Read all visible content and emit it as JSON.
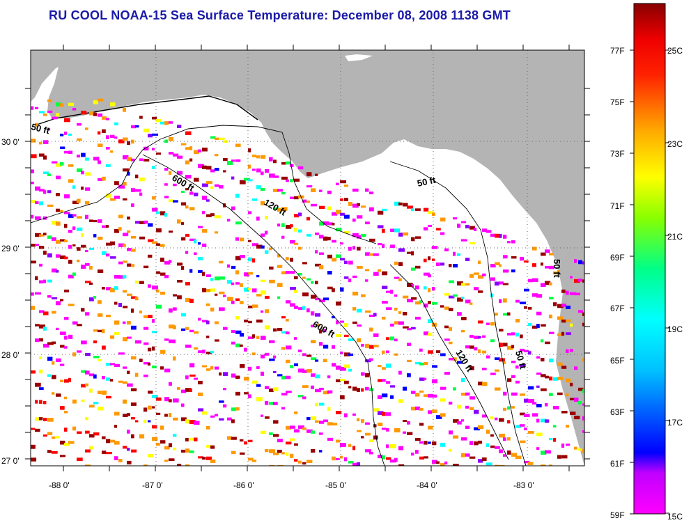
{
  "title": "RU COOL  NOAA-15  Sea Surface Temperature:  December 08, 2008 1138 GMT",
  "map": {
    "land_color": "#b4b4b4",
    "water_color": "#ffffff",
    "latitude_labels": [
      "30 0'",
      "29 0'",
      "28 0'",
      "27 0'"
    ],
    "longitude_labels": [
      "-88 0'",
      "-87 0'",
      "-86 0'",
      "-85 0'",
      "-84 0'",
      "-83 0'"
    ],
    "contour_labels": [
      "50 ft",
      "600 ft",
      "120 ft",
      "50 ft",
      "600 ft",
      "120 ft",
      "50 ft",
      "50 ft"
    ]
  },
  "colorbar": {
    "fahrenheit_labels": [
      "77F",
      "75F",
      "73F",
      "71F",
      "69F",
      "67F",
      "65F",
      "63F",
      "61F",
      "59F"
    ],
    "celsius_labels": [
      "25C",
      "23C",
      "21C",
      "19C",
      "17C",
      "15C"
    ],
    "colors": [
      "#ff00ff",
      "#8a00ff",
      "#0000ff",
      "#00ffff",
      "#00ff44",
      "#ffff00",
      "#ff9900",
      "#ff0000",
      "#990000"
    ]
  }
}
